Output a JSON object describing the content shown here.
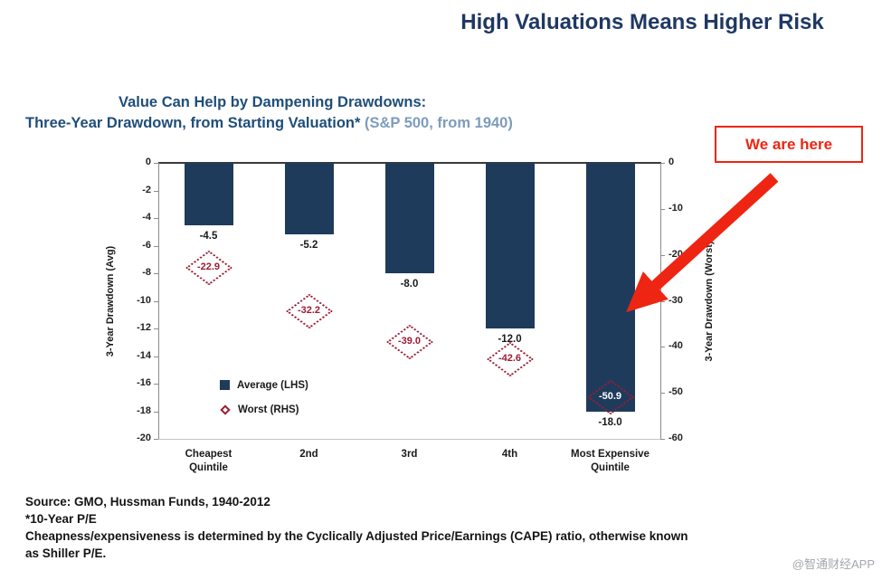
{
  "page_title": "High Valuations Means Higher Risk",
  "colors": {
    "title_navy": "#1f3864",
    "chart_title_blue": "#1f4e79",
    "bar_navy": "#1f3b5c",
    "worst_maroon": "#9b1c32",
    "arrow_red": "#ee2512"
  },
  "annotation": {
    "label": "We are here"
  },
  "chart_data": {
    "type": "bar",
    "title_line1": "Value Can Help by Dampening Drawdowns:",
    "title_line2_bold": "Three-Year Drawdown, from Starting Valuation*",
    "title_line2_light": " (S&P 500, from 1940)",
    "categories": [
      "Cheapest\nQuintile",
      "2nd",
      "3rd",
      "4th",
      "Most Expensive\nQuintile"
    ],
    "series": [
      {
        "name": "Average (LHS)",
        "axis": "left",
        "color": "#1f3b5c",
        "marker": "filled-square",
        "values": [
          -4.5,
          -5.2,
          -8,
          -12,
          -18
        ],
        "labels": [
          "-4.5",
          "-5.2",
          "-8.0",
          "-12.0",
          "-18.0"
        ]
      },
      {
        "name": "Worst (RHS)",
        "axis": "right",
        "color": "#9b1c32",
        "marker": "dotted-diamond",
        "values": [
          -22.9,
          -32.2,
          -39,
          -42.6,
          -50.9
        ],
        "labels": [
          "-22.9",
          "-32.2",
          "-39.0",
          "-42.6",
          "-50.9"
        ]
      }
    ],
    "left_axis": {
      "label": "3-Year Drawdown (Avg)",
      "min": -20,
      "max": 0,
      "ticks": [
        0,
        -2,
        -4,
        -6,
        -8,
        -10,
        -12,
        -14,
        -16,
        -18,
        -20
      ]
    },
    "right_axis": {
      "label": "3-Year Drawdown (Worst)",
      "min": -60,
      "max": 0,
      "ticks": [
        0,
        -10,
        -20,
        -30,
        -40,
        -50,
        -60
      ]
    },
    "legend_position": "inside-bottom-left",
    "grid": false
  },
  "footer": {
    "lines": [
      "Source: GMO, Hussman Funds, 1940-2012",
      "*10-Year P/E",
      "Cheapness/expensiveness is determined by the Cyclically Adjusted Price/Earnings (CAPE) ratio, otherwise known",
      "as Shiller P/E."
    ]
  },
  "watermark": "@智通财经APP"
}
